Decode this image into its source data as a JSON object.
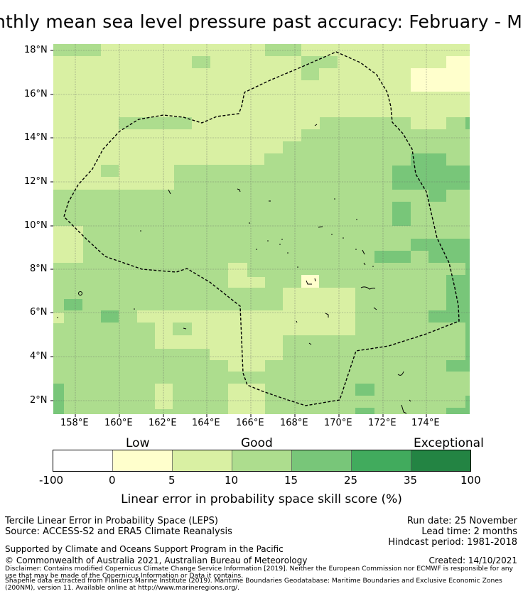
{
  "title": "nthly mean sea level pressure past accuracy: February - M",
  "map": {
    "lat_ticks": [
      "18°N",
      "16°N",
      "14°N",
      "12°N",
      "10°N",
      "8°N",
      "6°N",
      "4°N",
      "2°N"
    ],
    "lon_ticks": [
      "158°E",
      "160°E",
      "162°E",
      "164°E",
      "166°E",
      "168°E",
      "170°E",
      "172°E",
      "174°E"
    ]
  },
  "colorbar": {
    "categories": [
      "Low",
      "Good",
      "Exceptional"
    ],
    "ticks": [
      "-100",
      "0",
      "5",
      "10",
      "15",
      "25",
      "35",
      "100"
    ],
    "colors": [
      "#ffffff",
      "#ffffcc",
      "#d9f0a3",
      "#addd8e",
      "#78c679",
      "#41ab5d",
      "#238443"
    ],
    "label": "Linear error in probability space skill score (%)"
  },
  "footer": {
    "left_line1": "Tercile Linear Error in Probability Space (LEPS)",
    "left_line2": "Source: ACCESS-S2 and ERA5 Climate Reanalysis",
    "right_line1": "Run date: 25 November",
    "right_line2": "Lead time: 2 months",
    "right_line3": "Hindcast period: 1981-2018",
    "supported": "Supported by Climate and Oceans Support Program in the Pacific",
    "copyright": "© Commonwealth of Australia 2021, Australian Bureau of Meteorology",
    "created": "Created: 14/10/2021",
    "disclaimer1": "Disclaimer: Contains modified Copernicus Climate Change Service Information [2019]. Neither the European Commission nor ECMWF is responsible for any",
    "disclaimer2": "use that may be made of the Copernicus Information or Data it contains.",
    "shapefile1": "Shapefile data extracted from Flanders Marine Institute (2019). Maritime Boundaries Geodatabase: Maritime Boundaries and Exclusive Economic Zones",
    "shapefile2": "(200NM), version 11. Available online at http://www.marineregions.org/."
  }
}
